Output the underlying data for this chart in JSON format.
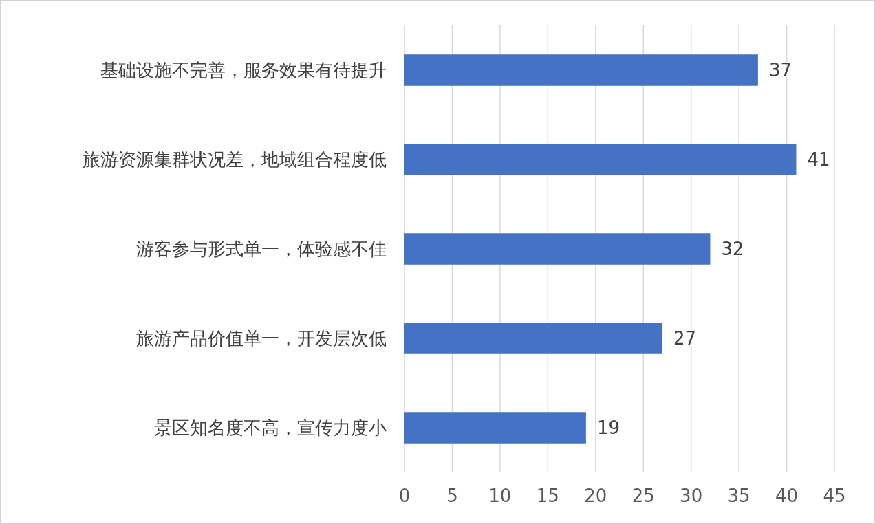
{
  "chart_data": {
    "type": "bar",
    "orientation": "horizontal",
    "categories": [
      "基础设施不完善，服务效果有待提升",
      "旅游资源集群状况差，地域组合程度低",
      "游客参与形式单一，体验感不佳",
      "旅游产品价值单一，开发层次低",
      "景区知名度不高，宣传力度小"
    ],
    "values": [
      37,
      41,
      32,
      27,
      19
    ],
    "color": "#4472c4",
    "xlim": [
      0,
      45
    ],
    "xticks": [
      0,
      5,
      10,
      15,
      20,
      25,
      30,
      35,
      40,
      45
    ],
    "grid": "x",
    "data_labels": true
  }
}
